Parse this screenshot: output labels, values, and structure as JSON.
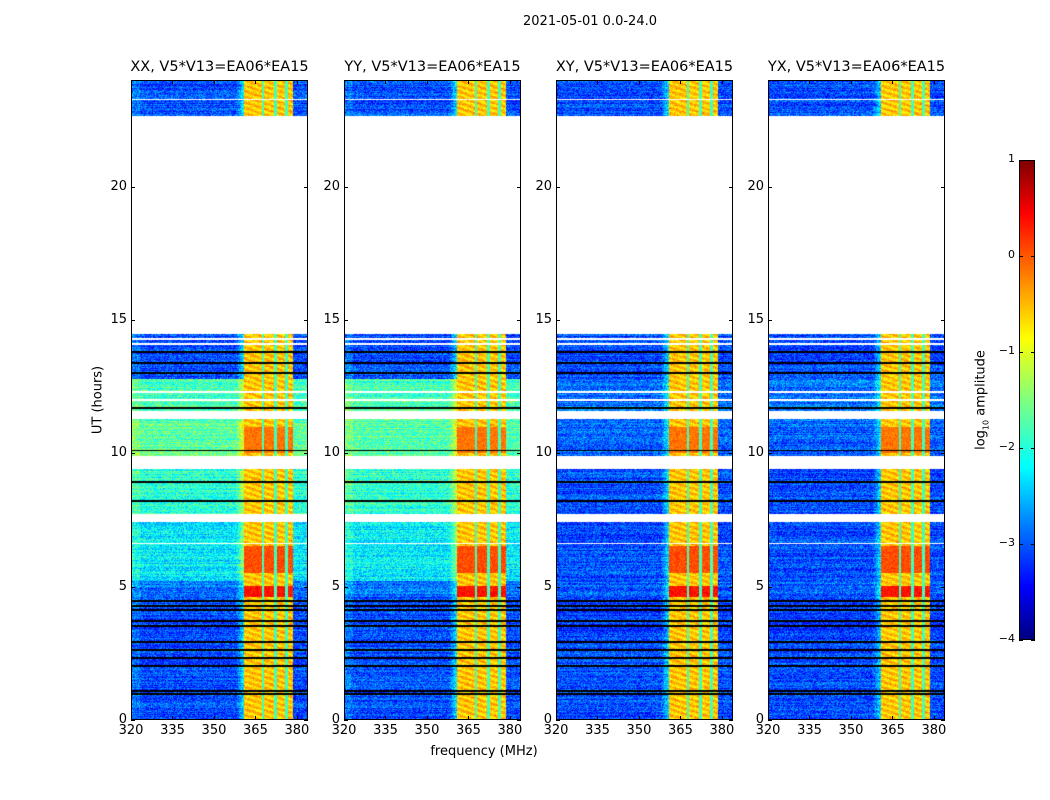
{
  "suptitle": "2021-05-01 0.0-24.0",
  "chart_data": {
    "type": "heatmap",
    "panels": [
      {
        "title": "XX, V5*V13=EA06*EA15",
        "kind": "parallel"
      },
      {
        "title": "YY, V5*V13=EA06*EA15",
        "kind": "parallel"
      },
      {
        "title": "XY, V5*V13=EA06*EA15",
        "kind": "cross"
      },
      {
        "title": "YX, V5*V13=EA06*EA15",
        "kind": "cross"
      }
    ],
    "xlabel": "frequency (MHz)",
    "ylabel": "UT (hours)",
    "xlim": [
      320,
      384
    ],
    "ylim": [
      0,
      24
    ],
    "xticks": [
      "320",
      "335",
      "350",
      "365",
      "380"
    ],
    "xtick_values": [
      320,
      335,
      350,
      365,
      380
    ],
    "yticks": [
      "0",
      "5",
      "10",
      "15",
      "20"
    ],
    "ytick_values": [
      0,
      5,
      10,
      15,
      20
    ],
    "colorbar": {
      "label_pre": "log",
      "label_sub": "10",
      "label_post": " amplitude",
      "range": [
        -4,
        1
      ],
      "ticks": [
        "1",
        "0",
        "−1",
        "−2",
        "−3",
        "−4"
      ],
      "tick_values": [
        1,
        0,
        -1,
        -2,
        -3,
        -4
      ],
      "colormap": "jet"
    },
    "no_data_intervals_hours": [
      [
        14.5,
        22.7
      ]
    ],
    "time_segments": [
      {
        "from": 0.0,
        "to": 2.9,
        "parallel_bg": -3.0,
        "cross_bg": -3.0
      },
      {
        "from": 2.9,
        "to": 4.6,
        "parallel_bg": -3.0,
        "cross_bg": -3.1
      },
      {
        "from": 4.6,
        "to": 5.2,
        "parallel_bg": -2.8,
        "cross_bg": -2.9
      },
      {
        "from": 5.2,
        "to": 7.4,
        "parallel_bg": -2.2,
        "cross_bg": -3.0
      },
      {
        "from": 7.7,
        "to": 9.4,
        "parallel_bg": -1.9,
        "cross_bg": -3.0
      },
      {
        "from": 9.9,
        "to": 11.3,
        "parallel_bg": -1.7,
        "cross_bg": -2.9
      },
      {
        "from": 11.6,
        "to": 12.8,
        "parallel_bg": -1.8,
        "cross_bg": -2.8
      },
      {
        "from": 12.8,
        "to": 14.5,
        "parallel_bg": -3.0,
        "cross_bg": -3.0
      },
      {
        "from": 22.7,
        "to": 24.0,
        "parallel_bg": -3.0,
        "cross_bg": -3.0
      }
    ],
    "flagged_black_hours": [
      0.95,
      1.05,
      2.0,
      2.3,
      2.6,
      2.9,
      3.5,
      3.7,
      4.1,
      4.25,
      4.45,
      8.2,
      8.9,
      9.45,
      9.55,
      9.65,
      9.75,
      10.1,
      11.35,
      11.45,
      11.55,
      11.7,
      13.0,
      13.4,
      13.8
    ],
    "flagged_white_hours": [
      7.45,
      7.55,
      7.65,
      6.6,
      12.0,
      12.3,
      14.1,
      14.3,
      23.3
    ],
    "rfi_band_mhz": [
      361,
      379
    ],
    "rfi_band_level": -0.6,
    "rfi_subband_gaps_mhz": [
      368,
      372.5,
      376.5
    ],
    "strong_rfi_hours": [
      [
        4.6,
        5.0,
        0.3
      ],
      [
        5.5,
        6.5,
        0.0
      ],
      [
        10.0,
        11.0,
        -0.2
      ]
    ]
  }
}
